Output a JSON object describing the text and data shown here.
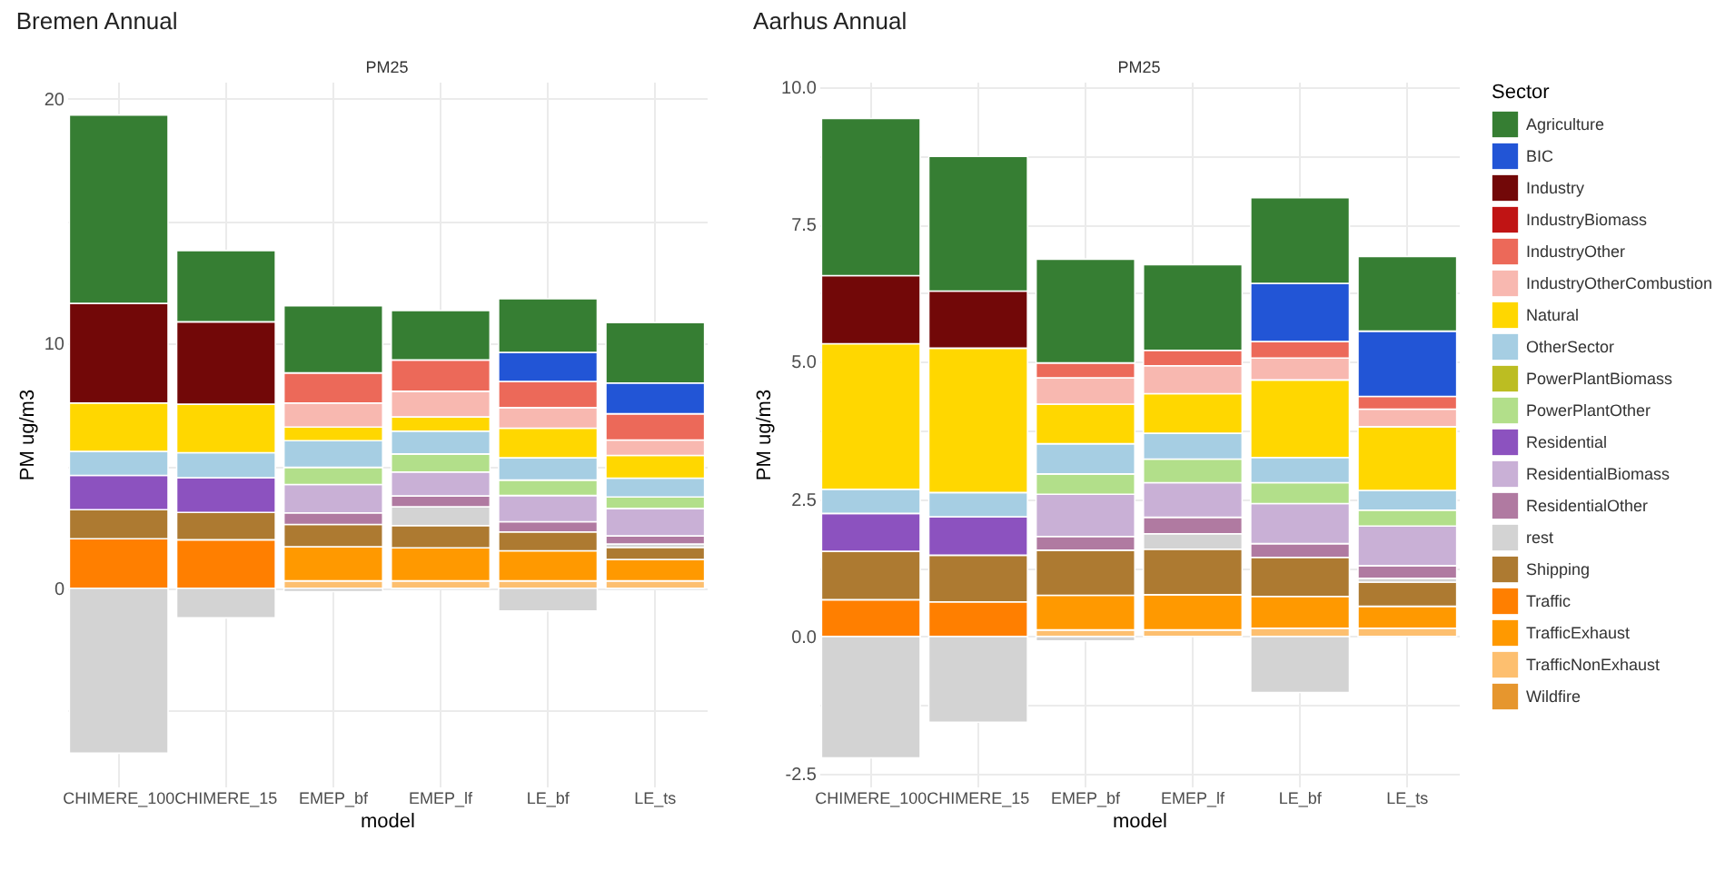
{
  "chart_data": [
    {
      "type": "bar",
      "title": "Bremen Annual",
      "subtitle": "PM25",
      "xlabel": "model",
      "ylabel": "PM ug/m3",
      "stacked": true,
      "grid": true,
      "categories": [
        "CHIMERE_100",
        "CHIMERE_15",
        "EMEP_bf",
        "EMEP_lf",
        "LE_bf",
        "LE_ts"
      ],
      "ylim": [
        -8.1,
        20.7
      ],
      "yticks": [
        {
          "value": -5,
          "label": null
        },
        0,
        {
          "value": 5,
          "label": null
        },
        10,
        {
          "value": 15,
          "label": null
        },
        20
      ],
      "series": [
        {
          "color": "#fdbf6f",
          "values": [
            null,
            null,
            0.3,
            0.3,
            0.3,
            0.3
          ]
        },
        {
          "color": "#ff9900",
          "values": [
            null,
            null,
            1.4,
            1.35,
            1.23,
            0.88
          ]
        },
        {
          "color": "#ff7f00",
          "values": [
            2.02,
            1.98,
            null,
            null,
            null,
            null
          ]
        },
        {
          "color": "#ad7a31",
          "values": [
            1.19,
            1.12,
            0.91,
            0.91,
            0.77,
            0.49
          ]
        },
        {
          "color": "#d3d3d3",
          "values": [
            -6.74,
            -1.21,
            -0.14,
            0.77,
            -0.93,
            0.14
          ]
        },
        {
          "color": "#b07aa1",
          "values": [
            null,
            null,
            0.47,
            0.44,
            0.42,
            0.33
          ]
        },
        {
          "color": "#c9b0d6",
          "values": [
            null,
            null,
            1.16,
            0.98,
            1.07,
            1.12
          ]
        },
        {
          "color": "#8c52bf",
          "values": [
            1.4,
            1.42,
            null,
            null,
            null,
            null
          ]
        },
        {
          "color": "#b2df8a",
          "values": [
            null,
            null,
            0.7,
            0.74,
            0.63,
            0.47
          ]
        },
        {
          "color": "#a6cee3",
          "values": [
            0.98,
            1.02,
            1.09,
            0.93,
            0.91,
            0.77
          ]
        },
        {
          "color": "#ffd700",
          "values": [
            1.98,
            1.98,
            0.56,
            0.58,
            1.21,
            0.93
          ]
        },
        {
          "color": "#f8b8b0",
          "values": [
            null,
            null,
            0.98,
            1.05,
            0.84,
            0.63
          ]
        },
        {
          "color": "#ec6959",
          "values": [
            null,
            null,
            1.23,
            1.28,
            1.07,
            1.07
          ]
        },
        {
          "color": "#720808",
          "values": [
            4.07,
            3.37,
            null,
            null,
            null,
            null
          ]
        },
        {
          "color": "#2255d6",
          "values": [
            null,
            null,
            null,
            null,
            1.19,
            1.26
          ]
        },
        {
          "color": "#367e33",
          "values": [
            7.7,
            2.91,
            2.74,
            2.02,
            2.19,
            2.47
          ]
        }
      ]
    },
    {
      "type": "bar",
      "title": "Aarhus Annual",
      "subtitle": "PM25",
      "xlabel": "model",
      "ylabel": "PM ug/m3",
      "stacked": true,
      "grid": true,
      "legend": "right",
      "legend_title": "Sector",
      "categories": [
        "CHIMERE_100",
        "CHIMERE_15",
        "EMEP_bf",
        "EMEP_lf",
        "LE_bf",
        "LE_ts"
      ],
      "ylim": [
        -2.73,
        10.1
      ],
      "yticks": [
        -2.5,
        {
          "value": -1.25,
          "label": null
        },
        {
          "value": 0,
          "label": "0.0"
        },
        {
          "value": 1.25,
          "label": null
        },
        2.5,
        {
          "value": 3.75,
          "label": null
        },
        {
          "value": 5,
          "label": "5.0"
        },
        {
          "value": 6.25,
          "label": null
        },
        7.5,
        {
          "value": 8.75,
          "label": null
        },
        {
          "value": 10,
          "label": "10.0"
        }
      ],
      "series": [
        {
          "name": "Wildfire",
          "color": "#e6962e",
          "values": [
            null,
            null,
            null,
            null,
            null,
            null
          ]
        },
        {
          "name": "TrafficNonExhaust",
          "color": "#fdbf6f",
          "values": [
            null,
            null,
            0.12,
            0.12,
            0.15,
            0.15
          ]
        },
        {
          "name": "TrafficExhaust",
          "color": "#ff9900",
          "values": [
            null,
            null,
            0.63,
            0.64,
            0.58,
            0.4
          ]
        },
        {
          "name": "Traffic",
          "color": "#ff7f00",
          "values": [
            0.67,
            0.63,
            null,
            null,
            null,
            null
          ]
        },
        {
          "name": "Shipping",
          "color": "#ad7a31",
          "values": [
            0.88,
            0.85,
            0.82,
            0.83,
            0.71,
            0.44
          ]
        },
        {
          "name": "rest",
          "color": "#d3d3d3",
          "values": [
            -2.21,
            -1.56,
            -0.08,
            0.28,
            -1.02,
            0.07
          ]
        },
        {
          "name": "ResidentialOther",
          "color": "#b07aa1",
          "values": [
            null,
            null,
            0.25,
            0.3,
            0.25,
            0.23
          ]
        },
        {
          "name": "ResidentialBiomass",
          "color": "#c9b0d6",
          "values": [
            null,
            null,
            0.77,
            0.63,
            0.73,
            0.72
          ]
        },
        {
          "name": "Residential",
          "color": "#8c52bf",
          "values": [
            0.69,
            0.7,
            null,
            null,
            null,
            null
          ]
        },
        {
          "name": "PowerPlantOther",
          "color": "#b2df8a",
          "values": [
            null,
            null,
            0.37,
            0.43,
            0.38,
            0.29
          ]
        },
        {
          "name": "PowerPlantBiomass",
          "color": "#bcbd22",
          "values": [
            null,
            null,
            null,
            null,
            null,
            null
          ]
        },
        {
          "name": "OtherSector",
          "color": "#a6cee3",
          "values": [
            0.44,
            0.44,
            0.55,
            0.47,
            0.46,
            0.36
          ]
        },
        {
          "name": "Natural",
          "color": "#ffd700",
          "values": [
            2.65,
            2.63,
            0.72,
            0.72,
            1.41,
            1.16
          ]
        },
        {
          "name": "IndustryOtherCombustion",
          "color": "#f8b8b0",
          "values": [
            null,
            null,
            0.48,
            0.51,
            0.4,
            0.32
          ]
        },
        {
          "name": "IndustryOther",
          "color": "#ec6959",
          "values": [
            null,
            null,
            0.27,
            0.28,
            0.3,
            0.23
          ]
        },
        {
          "name": "IndustryBiomass",
          "color": "#c01414",
          "values": [
            null,
            null,
            null,
            null,
            null,
            null
          ]
        },
        {
          "name": "Industry",
          "color": "#720808",
          "values": [
            1.24,
            1.04,
            null,
            null,
            null,
            null
          ]
        },
        {
          "name": "BIC",
          "color": "#2255d6",
          "values": [
            null,
            null,
            null,
            null,
            1.06,
            1.19
          ]
        },
        {
          "name": "Agriculture",
          "color": "#367e33",
          "values": [
            2.86,
            2.45,
            1.89,
            1.56,
            1.56,
            1.36
          ]
        }
      ]
    }
  ]
}
